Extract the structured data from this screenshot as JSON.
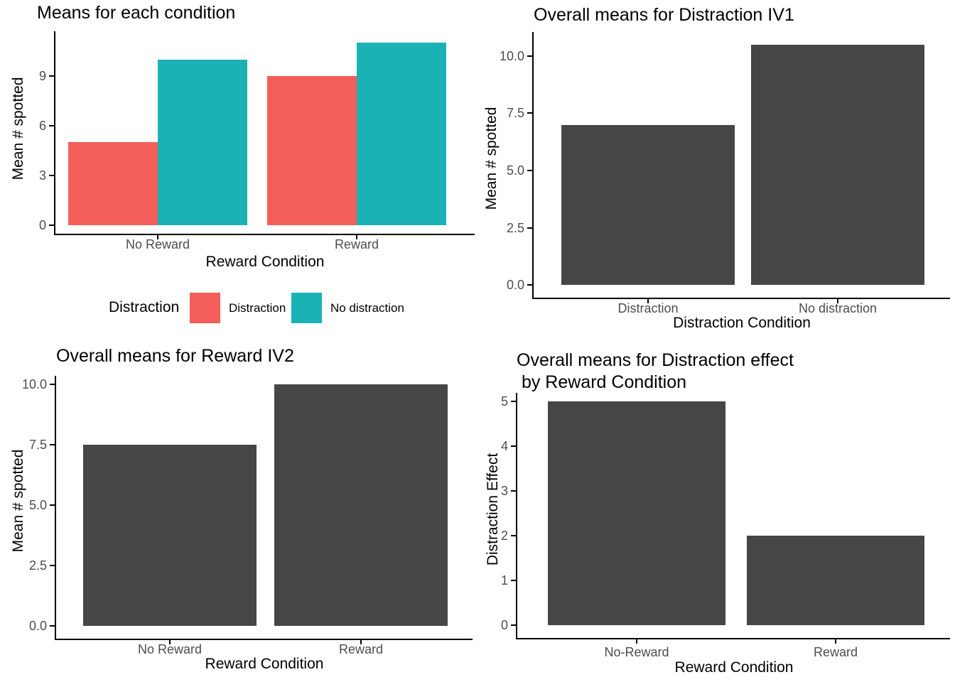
{
  "figure_background": "#ffffff",
  "colors": {
    "distraction_red": "#F35E5B",
    "no_distraction_teal": "#1AB2B5",
    "bar_dark_gray": "#464646",
    "axis_line": "#000000",
    "tick_label_gray": "#4d4d4d",
    "title_black": "#000000"
  },
  "chart_data": [
    {
      "type": "bar",
      "title": "Means for each condition",
      "xlabel": "Reward Condition",
      "ylabel": "Mean # spotted",
      "categories": [
        "No Reward",
        "Reward"
      ],
      "series": [
        {
          "name": "Distraction",
          "color": "#F35E5B",
          "values": [
            5,
            9
          ]
        },
        {
          "name": "No distraction",
          "color": "#1AB2B5",
          "values": [
            10,
            11
          ]
        }
      ],
      "yticks": [
        {
          "v": 0,
          "label": "0"
        },
        {
          "v": 3,
          "label": "3"
        },
        {
          "v": 6,
          "label": "6"
        },
        {
          "v": 9,
          "label": "9"
        }
      ],
      "ylim": [
        0,
        11.8
      ],
      "grid": false,
      "legend": {
        "title": "Distraction",
        "position": "bottom",
        "entries": [
          "Distraction",
          "No distraction"
        ]
      }
    },
    {
      "type": "bar",
      "title": "Overall means for Distraction IV1",
      "xlabel": "Distraction Condition",
      "ylabel": "Mean # spotted",
      "categories": [
        "Distraction",
        "No distraction"
      ],
      "series": [
        {
          "name": "mean",
          "color": "#464646",
          "values": [
            7,
            10.5
          ]
        }
      ],
      "yticks": [
        {
          "v": 0,
          "label": "0.0"
        },
        {
          "v": 2.5,
          "label": "2.5"
        },
        {
          "v": 5,
          "label": "5.0"
        },
        {
          "v": 7.5,
          "label": "7.5"
        },
        {
          "v": 10,
          "label": "10.0"
        }
      ],
      "ylim": [
        0,
        11.1
      ],
      "grid": false,
      "legend": null
    },
    {
      "type": "bar",
      "title": "Overall means for Reward IV2",
      "xlabel": "Reward Condition",
      "ylabel": "Mean # spotted",
      "categories": [
        "No Reward",
        "Reward"
      ],
      "series": [
        {
          "name": "mean",
          "color": "#464646",
          "values": [
            7.5,
            10
          ]
        }
      ],
      "yticks": [
        {
          "v": 0,
          "label": "0.0"
        },
        {
          "v": 2.5,
          "label": "2.5"
        },
        {
          "v": 5,
          "label": "5.0"
        },
        {
          "v": 7.5,
          "label": "7.5"
        },
        {
          "v": 10,
          "label": "10.0"
        }
      ],
      "ylim": [
        0,
        10.4
      ],
      "grid": false,
      "legend": null
    },
    {
      "type": "bar",
      "title": "Overall means for Distraction effect",
      "title_line2": " by Reward Condition",
      "xlabel": "Reward Condition",
      "ylabel": "Distraction Effect",
      "categories": [
        "No-Reward",
        "Reward"
      ],
      "series": [
        {
          "name": "effect",
          "color": "#464646",
          "values": [
            5,
            2
          ]
        }
      ],
      "yticks": [
        {
          "v": 0,
          "label": "0"
        },
        {
          "v": 1,
          "label": "1"
        },
        {
          "v": 2,
          "label": "2"
        },
        {
          "v": 3,
          "label": "3"
        },
        {
          "v": 4,
          "label": "4"
        },
        {
          "v": 5,
          "label": "5"
        }
      ],
      "ylim": [
        0,
        5.2
      ],
      "grid": false,
      "legend": null
    }
  ]
}
